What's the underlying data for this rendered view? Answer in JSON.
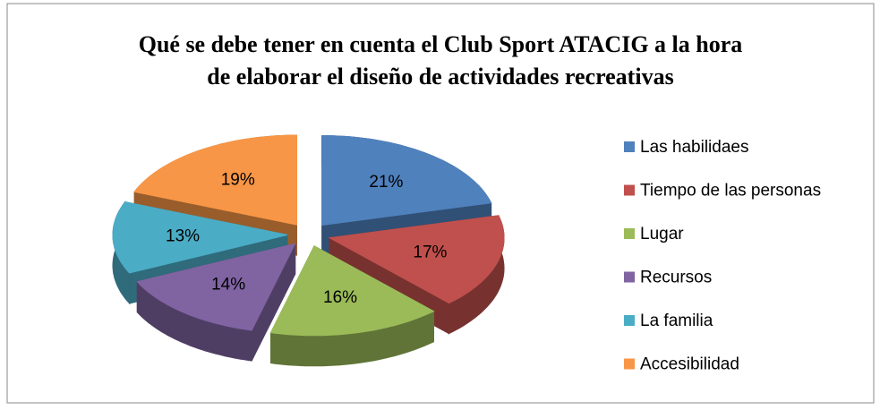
{
  "chart_data": {
    "type": "pie3d",
    "title": [
      "Qué se debe tener en cuenta el Club Sport ATACIG a la hora",
      "de elaborar el diseño de actividades recreativas"
    ],
    "categories": [
      "Las habilidaes",
      "Tiempo de las personas",
      "Lugar",
      "Recursos",
      "La familia",
      "Accesibilidad"
    ],
    "values": [
      21,
      17,
      16,
      14,
      13,
      19
    ],
    "value_labels": [
      "21%",
      "17%",
      "16%",
      "14%",
      "13%",
      "19%"
    ],
    "colors": [
      "#4f81bd",
      "#c0504d",
      "#9bbb59",
      "#8064a2",
      "#4bacc6",
      "#f79646"
    ],
    "legend": "right"
  }
}
